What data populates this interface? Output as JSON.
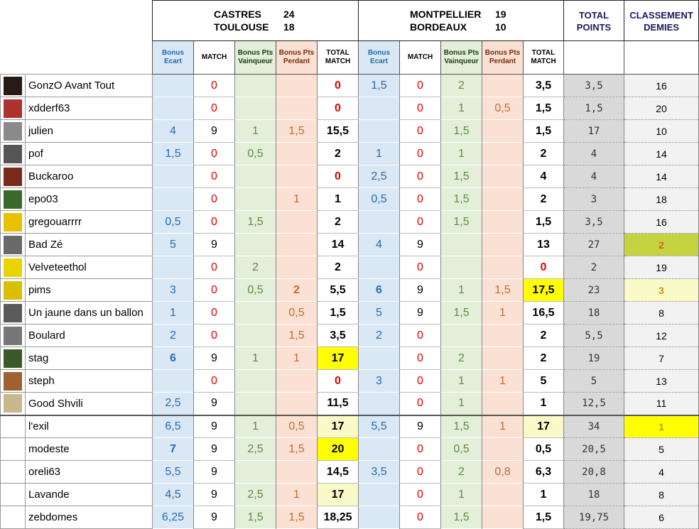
{
  "header": {
    "match1": {
      "team1": "CASTRES",
      "score1": "24",
      "team2": "TOULOUSE",
      "score2": "18"
    },
    "match2": {
      "team1": "MONTPELLIER",
      "score1": "19",
      "team2": "BORDEAUX",
      "score2": "10"
    },
    "total_points": "TOTAL POINTS",
    "classement": "CLASSEMENT DEMIES"
  },
  "sub_headers": [
    "Bonus Ecart",
    "MATCH",
    "Bonus Pts Vainqueur",
    "Bonus Pts Perdant",
    "TOTAL MATCH"
  ],
  "rows": [
    {
      "name": "GonzO Avant Tout",
      "avatar_color": "#2a1a14",
      "m1": [
        "",
        "0",
        "",
        "",
        "0"
      ],
      "m2": [
        "1,5",
        "0",
        "2",
        "",
        "3,5"
      ],
      "pts": "3,5",
      "cls": "16"
    },
    {
      "name": "xdderf63",
      "avatar_color": "#b03030",
      "m1": [
        "",
        "0",
        "",
        "",
        "0"
      ],
      "m2": [
        "",
        "0",
        "1",
        "0,5",
        "1,5"
      ],
      "pts": "1,5",
      "cls": "20"
    },
    {
      "name": "julien",
      "avatar_color": "#8a8a8a",
      "m1": [
        "4",
        "9",
        "1",
        "1,5",
        "15,5"
      ],
      "m2": [
        "",
        "0",
        "1,5",
        "",
        "1,5"
      ],
      "pts": "17",
      "cls": "10"
    },
    {
      "name": "pof",
      "avatar_color": "#555555",
      "m1": [
        "1,5",
        "0",
        "0,5",
        "",
        "2"
      ],
      "m2": [
        "1",
        "0",
        "1",
        "",
        "2"
      ],
      "pts": "4",
      "cls": "14"
    },
    {
      "name": "Buckaroo",
      "avatar_color": "#7a2a1a",
      "m1": [
        "",
        "0",
        "",
        "",
        "0"
      ],
      "m2": [
        "2,5",
        "0",
        "1,5",
        "",
        "4"
      ],
      "pts": "4",
      "cls": "14"
    },
    {
      "name": "epo03",
      "avatar_color": "#3a6a2a",
      "m1": [
        "",
        "0",
        "",
        "1",
        "1"
      ],
      "m2": [
        "0,5",
        "0",
        "1,5",
        "",
        "2"
      ],
      "pts": "3",
      "cls": "18"
    },
    {
      "name": "gregouarrrr",
      "avatar_color": "#e6c200",
      "m1": [
        "0,5",
        "0",
        "1,5",
        "",
        "2"
      ],
      "m2": [
        "",
        "0",
        "1,5",
        "",
        "1,5"
      ],
      "pts": "3,5",
      "cls": "16"
    },
    {
      "name": "Bad Zé",
      "avatar_color": "#6a6a6a",
      "m1": [
        "5",
        "9",
        "",
        "",
        "14"
      ],
      "m2": [
        "4",
        "9",
        "",
        "",
        "13"
      ],
      "pts": "27",
      "cls": "2"
    },
    {
      "name": "Velveteethol",
      "avatar_color": "#e8d400",
      "m1": [
        "",
        "0",
        "2",
        "",
        "2"
      ],
      "m2": [
        "",
        "0",
        "",
        "",
        "0"
      ],
      "pts": "2",
      "cls": "19"
    },
    {
      "name": "pims",
      "avatar_color": "#d8c000",
      "m1": [
        "3",
        "0",
        "0,5",
        "2",
        "5,5"
      ],
      "m2": [
        "6",
        "9",
        "1",
        "1,5",
        "17,5"
      ],
      "pts": "23",
      "cls": "3"
    },
    {
      "name": "Un jaune dans un ballon",
      "avatar_color": "#5a5a5a",
      "m1": [
        "1",
        "0",
        "",
        "0,5",
        "1,5"
      ],
      "m2": [
        "5",
        "9",
        "1,5",
        "1",
        "16,5"
      ],
      "pts": "18",
      "cls": "8"
    },
    {
      "name": "Boulard",
      "avatar_color": "#777777",
      "m1": [
        "2",
        "0",
        "",
        "1,5",
        "3,5"
      ],
      "m2": [
        "2",
        "0",
        "",
        "",
        "2"
      ],
      "pts": "5,5",
      "cls": "12"
    },
    {
      "name": "stag",
      "avatar_color": "#3a5a2a",
      "m1": [
        "6",
        "9",
        "1",
        "1",
        "17"
      ],
      "m2": [
        "",
        "0",
        "2",
        "",
        "2"
      ],
      "pts": "19",
      "cls": "7"
    },
    {
      "name": "steph",
      "avatar_color": "#a06030",
      "m1": [
        "",
        "0",
        "",
        "",
        "0"
      ],
      "m2": [
        "3",
        "0",
        "1",
        "1",
        "5"
      ],
      "pts": "5",
      "cls": "13"
    },
    {
      "name": "Good Shvili",
      "avatar_color": "#c8b890",
      "m1": [
        "2,5",
        "9",
        "",
        "",
        "11,5"
      ],
      "m2": [
        "",
        "0",
        "1",
        "",
        "1"
      ],
      "pts": "12,5",
      "cls": "11"
    },
    {
      "name": "l'exil",
      "avatar_color": "",
      "m1": [
        "6,5",
        "9",
        "1",
        "0,5",
        "17"
      ],
      "m2": [
        "5,5",
        "9",
        "1,5",
        "1",
        "17"
      ],
      "pts": "34",
      "cls": "1"
    },
    {
      "name": "modeste",
      "avatar_color": "",
      "m1": [
        "7",
        "9",
        "2,5",
        "1,5",
        "20"
      ],
      "m2": [
        "",
        "0",
        "0,5",
        "",
        "0,5"
      ],
      "pts": "20,5",
      "cls": "5"
    },
    {
      "name": "oreli63",
      "avatar_color": "",
      "m1": [
        "5,5",
        "9",
        "",
        "",
        "14,5"
      ],
      "m2": [
        "3,5",
        "0",
        "2",
        "0,8",
        "6,3"
      ],
      "pts": "20,8",
      "cls": "4"
    },
    {
      "name": "Lavande",
      "avatar_color": "",
      "m1": [
        "4,5",
        "9",
        "2,5",
        "1",
        "17"
      ],
      "m2": [
        "",
        "0",
        "1",
        "",
        "1"
      ],
      "pts": "18",
      "cls": "8"
    },
    {
      "name": "zebdomes",
      "avatar_color": "",
      "m1": [
        "6,25",
        "9",
        "1,5",
        "1,5",
        "18,25"
      ],
      "m2": [
        "",
        "0",
        "1,5",
        "",
        "1,5"
      ],
      "pts": "19,75",
      "cls": "6"
    }
  ],
  "colors": {
    "blue": "#1f6cb0",
    "green": "#5a8e3c",
    "orange": "#c56a2e",
    "red": "#e00000",
    "highlight": "#ffff00"
  }
}
